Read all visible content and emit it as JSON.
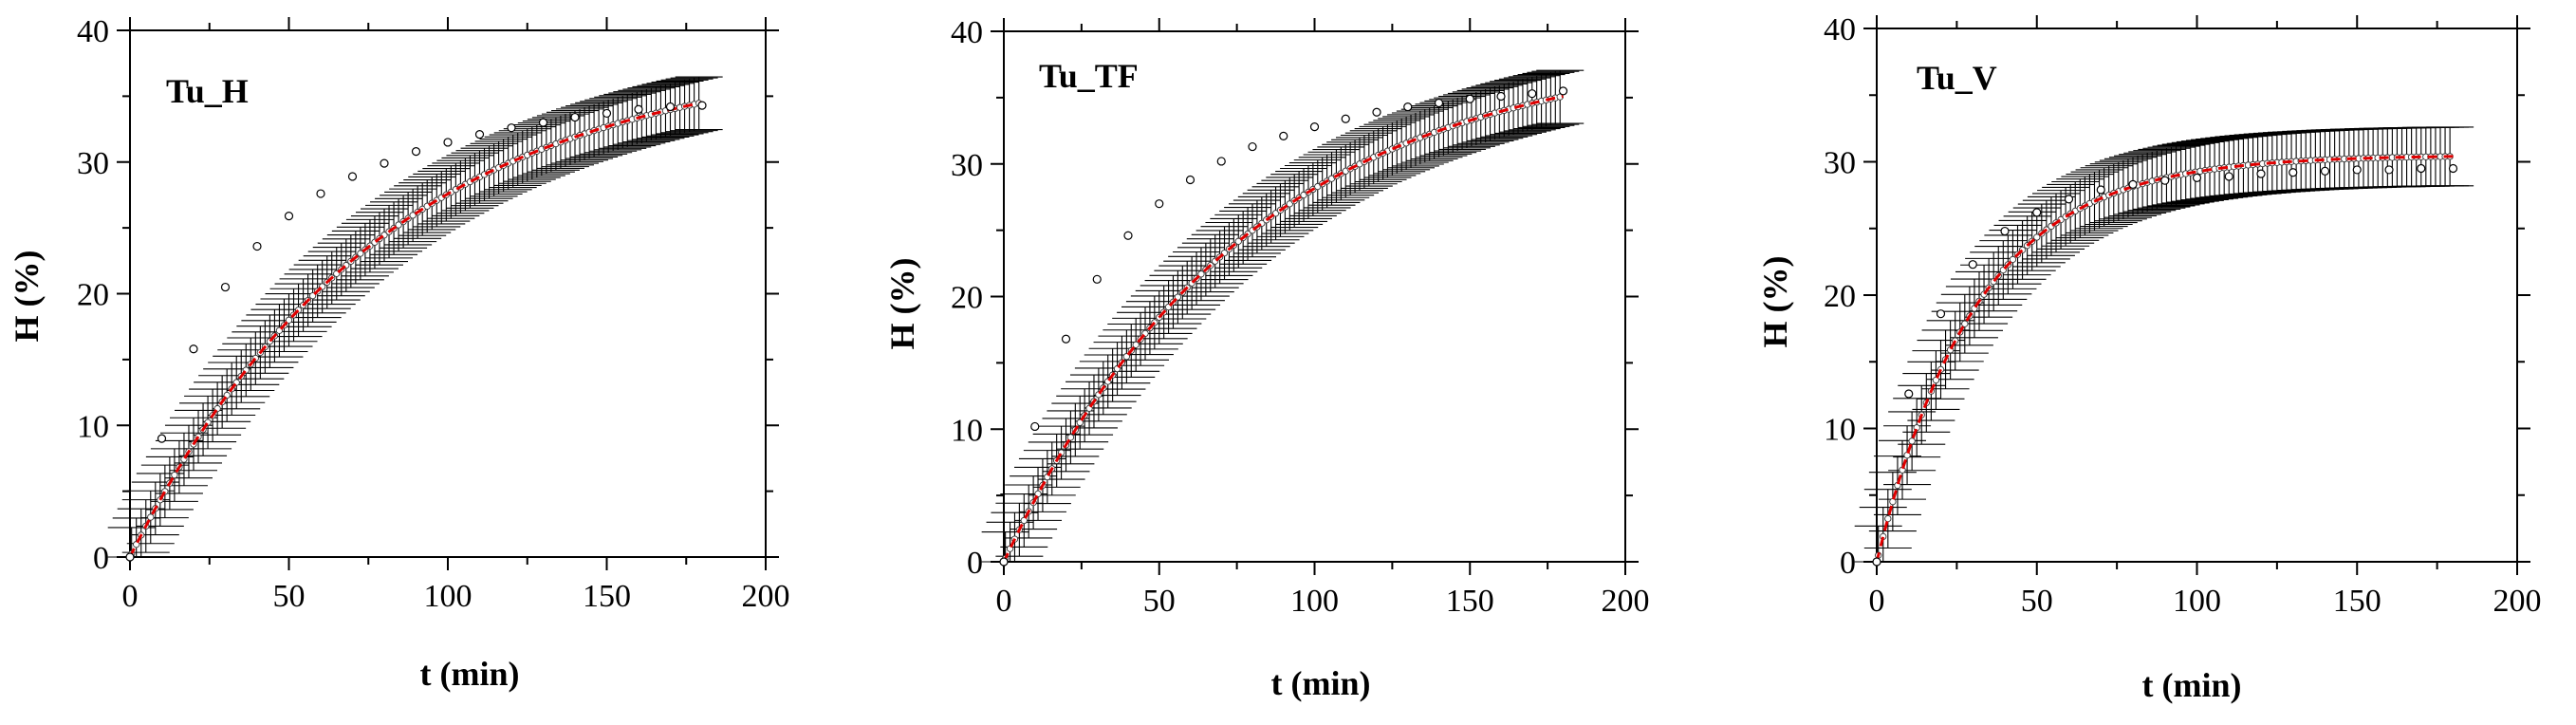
{
  "colors": {
    "fit_line": "#e00000",
    "markers": "#ffffff",
    "error_bars": "#000000",
    "axes": "#000000"
  },
  "chart_data": [
    {
      "type": "scatter",
      "title": "Tu_H",
      "xlabel": "t (min)",
      "ylabel": "H (%)",
      "xlim": [
        0,
        200
      ],
      "ylim": [
        0,
        40
      ],
      "xticks": [
        "0",
        "50",
        "100",
        "150",
        "200"
      ],
      "yticks": [
        "0",
        "10",
        "20",
        "30",
        "40"
      ],
      "model": {
        "hmax": 38.5,
        "k": 0.0126
      },
      "x": [
        0,
        10,
        20,
        30,
        40,
        50,
        60,
        70,
        80,
        90,
        100,
        110,
        120,
        130,
        140,
        150,
        160,
        170,
        180
      ],
      "y": [
        0,
        9.0,
        15.8,
        20.5,
        23.6,
        25.9,
        27.6,
        28.9,
        29.9,
        30.8,
        31.5,
        32.1,
        32.6,
        33.0,
        33.4,
        33.7,
        34.0,
        34.2,
        34.3
      ],
      "error": 2.0
    },
    {
      "type": "scatter",
      "title": "Tu_TF",
      "xlabel": "t (min)",
      "ylabel": "H (%)",
      "xlim": [
        0,
        200
      ],
      "ylim": [
        0,
        40
      ],
      "xticks": [
        "0",
        "50",
        "100",
        "150",
        "200"
      ],
      "yticks": [
        "0",
        "10",
        "20",
        "30",
        "40"
      ],
      "model": {
        "hmax": 39.0,
        "k": 0.0128
      },
      "x": [
        0,
        10,
        20,
        30,
        40,
        50,
        60,
        70,
        80,
        90,
        100,
        110,
        120,
        130,
        140,
        150,
        160,
        170,
        180
      ],
      "y": [
        0,
        10.2,
        16.8,
        21.3,
        24.6,
        27.0,
        28.8,
        30.2,
        31.3,
        32.1,
        32.8,
        33.4,
        33.9,
        34.3,
        34.6,
        34.9,
        35.1,
        35.3,
        35.5
      ],
      "error": 2.0
    },
    {
      "type": "scatter",
      "title": "Tu_V",
      "xlabel": "t (min)",
      "ylabel": "H (%)",
      "xlim": [
        0,
        200
      ],
      "ylim": [
        0,
        40
      ],
      "xticks": [
        "0",
        "50",
        "100",
        "150",
        "200"
      ],
      "yticks": [
        "0",
        "10",
        "20",
        "30",
        "40"
      ],
      "model": {
        "hmax": 30.5,
        "k": 0.032
      },
      "x": [
        0,
        10,
        20,
        30,
        40,
        50,
        60,
        70,
        80,
        90,
        100,
        110,
        120,
        130,
        140,
        150,
        160,
        170,
        180
      ],
      "y": [
        0,
        12.6,
        18.6,
        22.3,
        24.8,
        26.2,
        27.2,
        27.9,
        28.3,
        28.6,
        28.8,
        28.9,
        29.1,
        29.2,
        29.3,
        29.4,
        29.4,
        29.5,
        29.5
      ],
      "error": 2.2
    }
  ]
}
